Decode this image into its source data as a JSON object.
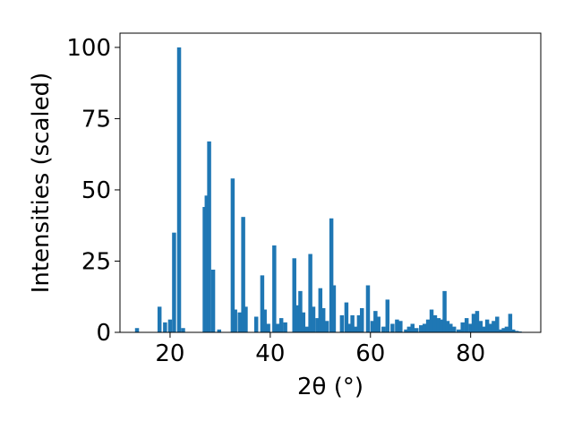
{
  "chart_data": {
    "type": "bar",
    "title": "",
    "xlabel": "2θ (°)",
    "ylabel": "Intensities (scaled)",
    "xlim": [
      10,
      94
    ],
    "ylim": [
      0,
      105
    ],
    "xticks": [
      20,
      40,
      60,
      80
    ],
    "yticks": [
      0,
      25,
      50,
      75,
      100
    ],
    "grid": false,
    "bar_color": "#1f77b4",
    "bar_width": 0.8,
    "x": [
      13.4,
      17.9,
      19.0,
      20.0,
      20.8,
      21.8,
      22.6,
      26.9,
      27.3,
      27.8,
      28.6,
      29.8,
      32.5,
      33.0,
      33.9,
      34.6,
      35.1,
      37.2,
      38.4,
      38.9,
      39.6,
      40.8,
      41.5,
      42.2,
      43.0,
      44.8,
      45.5,
      46.0,
      46.6,
      47.3,
      48.0,
      48.6,
      49.4,
      50.0,
      50.6,
      51.3,
      52.2,
      52.7,
      54.3,
      55.2,
      55.8,
      56.4,
      57.0,
      57.7,
      58.3,
      59.5,
      60.4,
      61.0,
      61.6,
      62.6,
      63.4,
      64.4,
      65.3,
      66.0,
      67.1,
      67.7,
      68.4,
      69.2,
      70.1,
      70.8,
      71.5,
      72.2,
      72.9,
      73.6,
      74.2,
      74.8,
      75.4,
      76.0,
      76.7,
      77.6,
      78.4,
      79.2,
      80.0,
      80.6,
      81.3,
      82.0,
      82.6,
      83.3,
      84.0,
      84.6,
      85.3,
      86.0,
      86.6,
      87.2,
      87.9,
      88.5,
      89.2,
      89.8
    ],
    "values": [
      1.5,
      9.0,
      3.5,
      4.5,
      35.0,
      100.0,
      1.5,
      44.0,
      48.0,
      67.0,
      22.0,
      1.0,
      54.0,
      8.0,
      7.0,
      40.5,
      9.0,
      5.5,
      20.0,
      8.0,
      3.0,
      30.5,
      3.0,
      5.0,
      3.5,
      26.0,
      9.5,
      14.5,
      7.0,
      2.0,
      27.5,
      9.0,
      5.0,
      15.5,
      8.5,
      4.0,
      40.0,
      16.5,
      6.0,
      10.5,
      3.0,
      6.0,
      2.0,
      6.0,
      8.5,
      16.5,
      4.0,
      7.5,
      5.5,
      2.0,
      11.5,
      3.0,
      4.5,
      4.0,
      1.0,
      2.0,
      3.0,
      1.5,
      2.5,
      3.0,
      4.5,
      8.0,
      6.0,
      5.0,
      4.5,
      14.5,
      4.0,
      3.0,
      2.0,
      1.0,
      3.5,
      5.0,
      3.0,
      6.5,
      7.5,
      4.0,
      2.0,
      4.5,
      3.0,
      4.0,
      5.5,
      1.0,
      1.5,
      2.0,
      6.5,
      1.0,
      0.5,
      0.3
    ]
  }
}
